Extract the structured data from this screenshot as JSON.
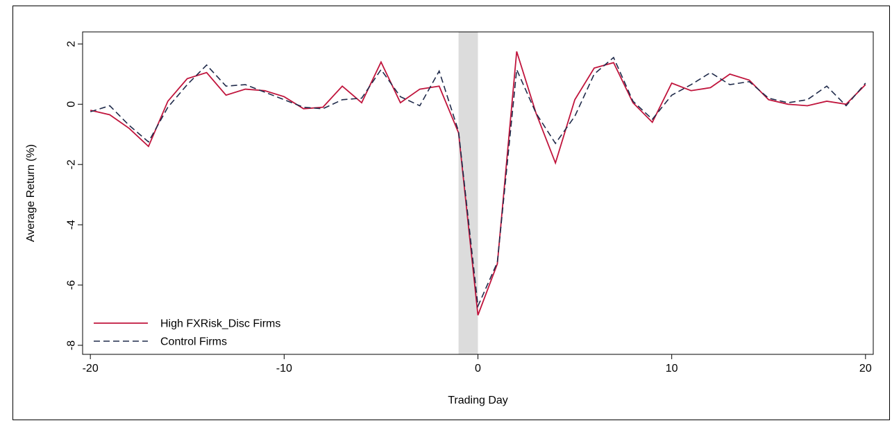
{
  "chart_data": {
    "type": "line",
    "xlabel": "Trading Day",
    "ylabel": "Average Return (%)",
    "xlim": [
      -20.4,
      20.4
    ],
    "ylim": [
      -8.3,
      2.4
    ],
    "xticks": [
      -20,
      -10,
      0,
      10,
      20
    ],
    "xtick_labels": [
      "-20",
      "-10",
      "0",
      "10",
      "20"
    ],
    "yticks": [
      2,
      0,
      -2,
      -4,
      -6,
      -8
    ],
    "ytick_labels": [
      "2",
      "0",
      "-2",
      "-4",
      "-6",
      "-8"
    ],
    "shaded_region": {
      "x0": -1,
      "x1": 0,
      "color": "#dcdcdc"
    },
    "legend_position": "bottom-left",
    "grid": false,
    "x": [
      -20,
      -19,
      -18,
      -17,
      -16,
      -15,
      -14,
      -13,
      -12,
      -11,
      -10,
      -9,
      -8,
      -7,
      -6,
      -5,
      -4,
      -3,
      -2,
      -1,
      0,
      1,
      2,
      3,
      4,
      5,
      6,
      7,
      8,
      9,
      10,
      11,
      12,
      13,
      14,
      15,
      16,
      17,
      18,
      19,
      20
    ],
    "series": [
      {
        "name": "High FXRisk_Disc Firms",
        "color": "#c0143c",
        "dash": "solid",
        "values": [
          -0.2,
          -0.35,
          -0.8,
          -1.4,
          0.1,
          0.85,
          1.05,
          0.3,
          0.5,
          0.45,
          0.25,
          -0.15,
          -0.1,
          0.6,
          0.05,
          1.4,
          0.05,
          0.5,
          0.6,
          -0.95,
          -7.0,
          -5.3,
          1.75,
          -0.3,
          -1.95,
          0.15,
          1.2,
          1.38,
          0.05,
          -0.6,
          0.7,
          0.45,
          0.55,
          1.0,
          0.8,
          0.15,
          0.0,
          -0.05,
          0.1,
          0.0,
          0.65
        ]
      },
      {
        "name": "Control Firms",
        "color": "#1f2a4a",
        "dash": "dashed",
        "values": [
          -0.25,
          -0.05,
          -0.7,
          -1.25,
          -0.1,
          0.65,
          1.3,
          0.6,
          0.65,
          0.4,
          0.15,
          -0.1,
          -0.15,
          0.15,
          0.2,
          1.15,
          0.25,
          -0.05,
          1.1,
          -0.9,
          -6.7,
          -5.25,
          1.15,
          -0.3,
          -1.3,
          -0.4,
          1.0,
          1.55,
          0.1,
          -0.5,
          0.3,
          0.65,
          1.05,
          0.65,
          0.75,
          0.2,
          0.05,
          0.15,
          0.6,
          -0.05,
          0.7
        ]
      }
    ]
  }
}
